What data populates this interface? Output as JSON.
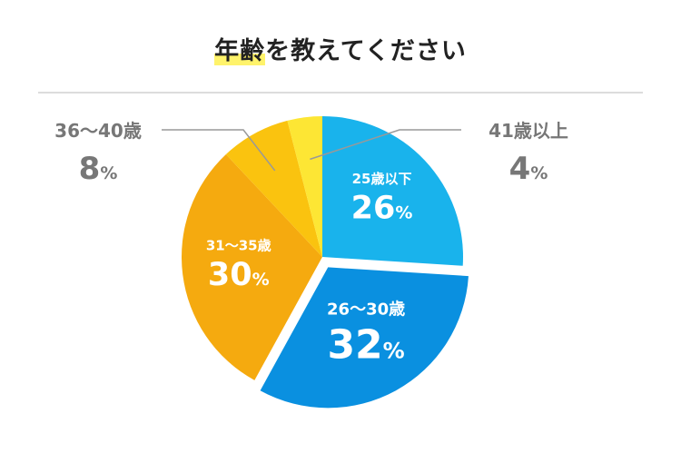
{
  "title": {
    "highlight": "年齢",
    "rest": "を教えてください"
  },
  "colors": {
    "title_highlight": "#fff36b",
    "divider": "#dcdcdc",
    "leader": "#999999",
    "outside_label": "#777777"
  },
  "chart_data": {
    "type": "pie",
    "title": "年齢を教えてください",
    "unit": "%",
    "slices": [
      {
        "label": "25歳以下",
        "value": 26,
        "color": "#19b3ec",
        "label_pos": "inside",
        "exploded": false
      },
      {
        "label": "26〜30歳",
        "value": 32,
        "color": "#0a90e0",
        "label_pos": "inside",
        "exploded": true
      },
      {
        "label": "31〜35歳",
        "value": 30,
        "color": "#f5aa0f",
        "label_pos": "inside",
        "exploded": false
      },
      {
        "label": "36〜40歳",
        "value": 8,
        "color": "#fac30f",
        "label_pos": "outside-left",
        "exploded": false
      },
      {
        "label": "41歳以上",
        "value": 4,
        "color": "#fde634",
        "label_pos": "outside-right",
        "exploded": false
      }
    ]
  }
}
